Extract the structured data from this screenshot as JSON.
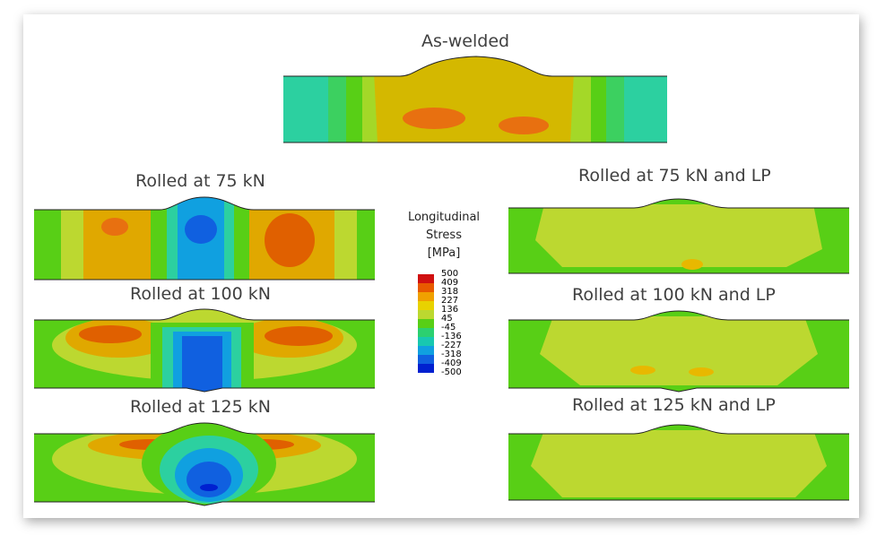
{
  "panels": {
    "as_welded": "As-welded",
    "rolled_75": "Rolled at 75 kN",
    "rolled_100": "Rolled at 100 kN",
    "rolled_125": "Rolled at 125 kN",
    "rolled_75_lp": "Rolled at 75 kN and LP",
    "rolled_100_lp": "Rolled at 100 kN and LP",
    "rolled_125_lp": "Rolled at 125 kN and LP"
  },
  "legend": {
    "title_lines": [
      "Longitudinal",
      "Stress",
      "[MPa]"
    ],
    "ticks": [
      "500",
      "409",
      "318",
      "227",
      "136",
      "45",
      "-45",
      "-136",
      "-227",
      "-318",
      "-409",
      "-500"
    ],
    "colors": [
      "#d01010",
      "#e85a00",
      "#f0a000",
      "#e8d200",
      "#bcd830",
      "#58cf16",
      "#2cd070",
      "#18c8b0",
      "#10a0e0",
      "#1060e0",
      "#0020d0"
    ]
  }
}
